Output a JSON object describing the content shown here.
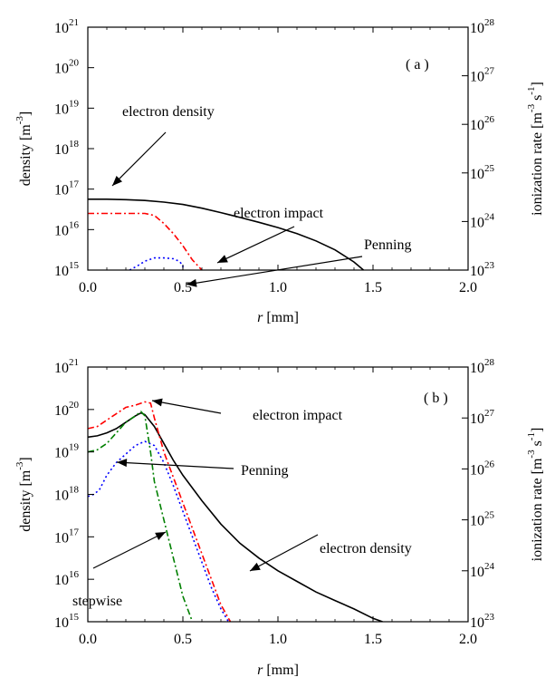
{
  "chart_data": [
    {
      "type": "line",
      "panel_label": "( a )",
      "xlabel_var": "r",
      "xlabel_unit": "[mm]",
      "ylabel_left_text": "density",
      "ylabel_left_unit": "[m",
      "ylabel_left_exp": "-3",
      "ylabel_right_text": "ionization rate",
      "ylabel_right_unit1": "[m",
      "ylabel_right_exp1": "-3",
      "ylabel_right_unit2": "s",
      "ylabel_right_exp2": "-1",
      "xlim": [
        0.0,
        2.0
      ],
      "xticks": [
        "0.0",
        "0.5",
        "1.0",
        "1.5",
        "2.0"
      ],
      "ylim_left_log10": [
        15,
        21
      ],
      "yticks_left": [
        {
          "base": "10",
          "exp": "15"
        },
        {
          "base": "10",
          "exp": "16"
        },
        {
          "base": "10",
          "exp": "17"
        },
        {
          "base": "10",
          "exp": "18"
        },
        {
          "base": "10",
          "exp": "19"
        },
        {
          "base": "10",
          "exp": "20"
        },
        {
          "base": "10",
          "exp": "21"
        }
      ],
      "ylim_right_log10": [
        23,
        28
      ],
      "yticks_right": [
        {
          "base": "10",
          "exp": "23"
        },
        {
          "base": "10",
          "exp": "24"
        },
        {
          "base": "10",
          "exp": "25"
        },
        {
          "base": "10",
          "exp": "26"
        },
        {
          "base": "10",
          "exp": "27"
        },
        {
          "base": "10",
          "exp": "28"
        }
      ],
      "series": [
        {
          "name": "electron density",
          "axis": "left",
          "color": "#000000",
          "dash": "",
          "x": [
            0.0,
            0.1,
            0.2,
            0.3,
            0.4,
            0.5,
            0.6,
            0.7,
            0.8,
            0.9,
            1.0,
            1.1,
            1.2,
            1.3,
            1.4,
            1.45
          ],
          "y_log10": [
            16.75,
            16.75,
            16.74,
            16.72,
            16.68,
            16.62,
            16.53,
            16.42,
            16.3,
            16.18,
            16.05,
            15.9,
            15.72,
            15.5,
            15.2,
            15.0
          ]
        },
        {
          "name": "electron impact",
          "axis": "left",
          "color": "#ff0000",
          "dash": "7,3,2,3",
          "x": [
            0.0,
            0.1,
            0.2,
            0.3,
            0.35,
            0.4,
            0.45,
            0.5,
            0.55,
            0.6
          ],
          "y_log10": [
            16.4,
            16.4,
            16.4,
            16.4,
            16.35,
            16.15,
            15.9,
            15.6,
            15.25,
            15.0
          ]
        },
        {
          "name": "Penning",
          "axis": "left",
          "color": "#0000ff",
          "dash": "2,3",
          "x": [
            0.22,
            0.26,
            0.3,
            0.35,
            0.4,
            0.45,
            0.48,
            0.5,
            0.5
          ],
          "y_log10": [
            15.0,
            15.1,
            15.22,
            15.3,
            15.3,
            15.28,
            15.22,
            15.12,
            15.0
          ]
        }
      ],
      "annotations": [
        {
          "text": "electron density",
          "color": "#000000"
        },
        {
          "text": "electron impact",
          "color": "#ff0000"
        },
        {
          "text": "Penning",
          "color": "#0000ff"
        }
      ]
    },
    {
      "type": "line",
      "panel_label": "( b )",
      "xlabel_var": "r",
      "xlabel_unit": "[mm]",
      "ylabel_left_text": "density",
      "ylabel_left_unit": "[m",
      "ylabel_left_exp": "-3",
      "ylabel_right_text": "ionization rate",
      "ylabel_right_unit1": "[m",
      "ylabel_right_exp1": "-3",
      "ylabel_right_unit2": "s",
      "ylabel_right_exp2": "-1",
      "xlim": [
        0.0,
        2.0
      ],
      "xticks": [
        "0.0",
        "0.5",
        "1.0",
        "1.5",
        "2.0"
      ],
      "ylim_left_log10": [
        15,
        21
      ],
      "yticks_left": [
        {
          "base": "10",
          "exp": "15"
        },
        {
          "base": "10",
          "exp": "16"
        },
        {
          "base": "10",
          "exp": "17"
        },
        {
          "base": "10",
          "exp": "18"
        },
        {
          "base": "10",
          "exp": "19"
        },
        {
          "base": "10",
          "exp": "20"
        },
        {
          "base": "10",
          "exp": "21"
        }
      ],
      "ylim_right_log10": [
        23,
        28
      ],
      "yticks_right": [
        {
          "base": "10",
          "exp": "23"
        },
        {
          "base": "10",
          "exp": "24"
        },
        {
          "base": "10",
          "exp": "25"
        },
        {
          "base": "10",
          "exp": "26"
        },
        {
          "base": "10",
          "exp": "27"
        },
        {
          "base": "10",
          "exp": "28"
        }
      ],
      "series": [
        {
          "name": "electron density",
          "axis": "left",
          "color": "#000000",
          "dash": "",
          "x": [
            0.0,
            0.05,
            0.1,
            0.15,
            0.2,
            0.25,
            0.28,
            0.3,
            0.35,
            0.4,
            0.45,
            0.5,
            0.6,
            0.7,
            0.8,
            0.9,
            1.0,
            1.1,
            1.2,
            1.3,
            1.4,
            1.5,
            1.55
          ],
          "y_log10": [
            19.35,
            19.38,
            19.45,
            19.55,
            19.7,
            19.85,
            19.92,
            19.88,
            19.6,
            19.2,
            18.8,
            18.45,
            17.85,
            17.3,
            16.85,
            16.5,
            16.2,
            15.95,
            15.7,
            15.5,
            15.3,
            15.08,
            15.0
          ]
        },
        {
          "name": "electron impact",
          "axis": "left",
          "color": "#ff0000",
          "dash": "7,3,2,3",
          "x": [
            0.0,
            0.05,
            0.1,
            0.15,
            0.2,
            0.25,
            0.3,
            0.33,
            0.35,
            0.4,
            0.45,
            0.5,
            0.55,
            0.6,
            0.65,
            0.7,
            0.75
          ],
          "y_log10": [
            19.55,
            19.6,
            19.75,
            19.9,
            20.05,
            20.1,
            20.18,
            20.15,
            19.8,
            19.0,
            18.4,
            17.8,
            17.2,
            16.6,
            16.0,
            15.4,
            15.0
          ]
        },
        {
          "name": "Penning",
          "axis": "left",
          "color": "#0000ff",
          "dash": "2,3",
          "x": [
            0.0,
            0.03,
            0.06,
            0.1,
            0.15,
            0.2,
            0.25,
            0.3,
            0.35,
            0.4,
            0.45,
            0.5,
            0.55,
            0.6,
            0.65,
            0.7,
            0.74
          ],
          "y_log10": [
            17.95,
            18.0,
            18.1,
            18.45,
            18.75,
            18.95,
            19.15,
            19.25,
            19.15,
            18.75,
            18.2,
            17.6,
            17.0,
            16.4,
            15.8,
            15.3,
            15.0
          ]
        },
        {
          "name": "stepwise",
          "axis": "left",
          "color": "#008000",
          "dash": "7,3,2,3",
          "x": [
            0.0,
            0.05,
            0.1,
            0.15,
            0.2,
            0.25,
            0.28,
            0.3,
            0.33,
            0.35,
            0.4,
            0.45,
            0.5,
            0.55
          ],
          "y_log10": [
            19.0,
            19.05,
            19.2,
            19.45,
            19.7,
            19.85,
            19.95,
            19.85,
            19.0,
            18.3,
            17.4,
            16.5,
            15.6,
            15.0
          ]
        }
      ],
      "annotations": [
        {
          "text": "electron impact",
          "color": "#ff0000"
        },
        {
          "text": "Penning",
          "color": "#0000ff"
        },
        {
          "text": "electron density",
          "color": "#000000"
        },
        {
          "text": "stepwise",
          "color": "#008000"
        }
      ]
    }
  ]
}
